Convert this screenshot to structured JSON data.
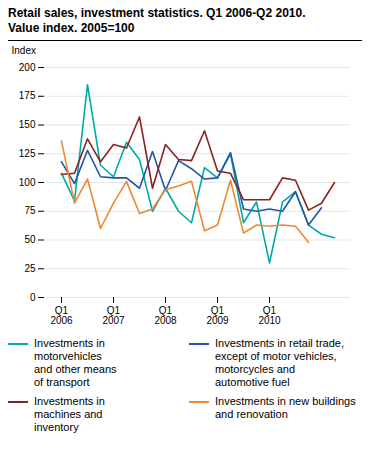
{
  "chart_data": {
    "type": "line",
    "title": "Retail sales, investment statistics. Q1 2006-Q2 2010.",
    "subtitle": "Value index. 2005=100",
    "ylabel": "Index",
    "categories": [
      "Q1\n2006",
      null,
      null,
      null,
      "Q1\n2007",
      null,
      null,
      null,
      "Q1\n2008",
      null,
      null,
      null,
      "Q1\n2009",
      null,
      null,
      null,
      "Q1\n2010",
      null,
      null,
      null,
      null,
      null
    ],
    "series": [
      {
        "name": "Investments in\nmotorvehicles\nand other means\nof transport",
        "color": "#00AAAA",
        "values": [
          108,
          84,
          185,
          115,
          105,
          135,
          120,
          75,
          95,
          75,
          65,
          113,
          104,
          125,
          65,
          83,
          30,
          83,
          92,
          63,
          55,
          52
        ]
      },
      {
        "name": "Investments in retail trade,\nexcept of motor vehicles,\nmotorcycles and\nautomotive fuel",
        "color": "#2255AA",
        "values": [
          118,
          99,
          128,
          105,
          104,
          104,
          95,
          127,
          93,
          119,
          112,
          103,
          104,
          126,
          77,
          75,
          77,
          75,
          92,
          63,
          78,
          null
        ]
      },
      {
        "name": "Investments in\nmachines and\ninventory",
        "color": "#882222",
        "values": [
          107,
          108,
          138,
          118,
          133,
          130,
          157,
          95,
          133,
          120,
          119,
          145,
          110,
          108,
          85,
          85,
          85,
          104,
          102,
          76,
          82,
          100
        ]
      },
      {
        "name": "Investments in new buildings\nand renovation",
        "color": "#EE8833",
        "values": [
          136,
          82,
          103,
          60,
          82,
          101,
          73,
          77,
          94,
          97,
          101,
          58,
          63,
          102,
          56,
          63,
          62,
          63,
          62,
          48,
          null,
          null
        ]
      }
    ],
    "ylim": [
      0,
      200
    ],
    "yticks": [
      0,
      25,
      50,
      75,
      100,
      125,
      150,
      175,
      200
    ],
    "grid": true,
    "legend": "bottom"
  }
}
